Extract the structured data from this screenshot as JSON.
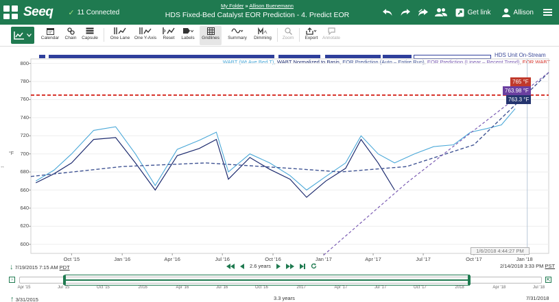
{
  "header": {
    "logo": "Seeq",
    "connected": "11 Connected",
    "breadcrumb_folder": "My Folder",
    "breadcrumb_separator": "»",
    "breadcrumb_user": "Allison Buenemann",
    "title": "HDS Fixed-Bed Catalyst EOR Prediction - 4. Predict EOR",
    "get_link": "Get link",
    "user": "Allison"
  },
  "toolbar": {
    "items": [
      {
        "label": "Calendar",
        "icon": "calendar-icon"
      },
      {
        "label": "Chain",
        "icon": "chain-icon"
      },
      {
        "label": "Capsule",
        "icon": "capsule-icon"
      },
      {
        "label": "One Lane",
        "icon": "one-lane-icon"
      },
      {
        "label": "One Y-Axis",
        "icon": "one-y-axis-icon"
      },
      {
        "label": "Reset",
        "icon": "reset-icon"
      },
      {
        "label": "Labels",
        "icon": "labels-icon"
      },
      {
        "label": "Gridlines",
        "icon": "gridlines-icon"
      },
      {
        "label": "Summary",
        "icon": "summary-icon"
      },
      {
        "label": "Dimming",
        "icon": "dimming-icon"
      },
      {
        "label": "Zoom",
        "icon": "zoom-icon"
      },
      {
        "label": "Export",
        "icon": "export-icon"
      },
      {
        "label": "Annotate",
        "icon": "annotate-icon"
      }
    ]
  },
  "chart_data": {
    "type": "line",
    "title": "",
    "ylabel": "°F",
    "ylim": [
      590,
      805
    ],
    "yticks": [
      "800",
      "780",
      "760",
      "740",
      "720",
      "700",
      "680",
      "660",
      "640",
      "620",
      "600"
    ],
    "xticks": [
      "Oct '15",
      "Jan '16",
      "Apr '16",
      "Jul '16",
      "Oct '16",
      "Jan '17",
      "Apr '17",
      "Jul '17",
      "Oct '17",
      "Jan '18"
    ],
    "xrange": [
      "2015-07-19",
      "2018-02-14"
    ],
    "legend_placement": "top-right",
    "condition": {
      "name": "HDS Unit On-Stream",
      "color": "#2e3f9b"
    },
    "series": [
      {
        "name": "WABT (Wt Ave Bed T)",
        "color": "#4aa8d8",
        "x": [
          "2015-07-28",
          "2015-08-30",
          "2015-10-01",
          "2015-11-10",
          "2015-12-20",
          "2016-01-25",
          "2016-03-01",
          "2016-04-10",
          "2016-05-20",
          "2016-06-20",
          "2016-07-12",
          "2016-08-20",
          "2016-09-25",
          "2016-11-01",
          "2016-12-01",
          "2017-01-05",
          "2017-02-10",
          "2017-03-10",
          "2017-04-10",
          "2017-05-10",
          "2017-06-15",
          "2017-07-20",
          "2017-08-25",
          "2017-09-25",
          "2017-10-25",
          "2017-11-20",
          "2017-12-15"
        ],
        "y": [
          670,
          682,
          700,
          726,
          730,
          700,
          665,
          705,
          715,
          724,
          680,
          700,
          690,
          676,
          660,
          675,
          690,
          720,
          700,
          690,
          700,
          708,
          710,
          724,
          728,
          732,
          750
        ]
      },
      {
        "name": "WABT Normalized to Basis",
        "color": "#1c2a6e",
        "x": [
          "2015-07-28",
          "2015-08-30",
          "2015-10-01",
          "2015-11-10",
          "2015-12-20",
          "2016-01-25",
          "2016-03-01",
          "2016-04-10",
          "2016-05-20",
          "2016-06-20",
          "2016-07-12",
          "2016-08-20",
          "2016-09-25",
          "2016-11-01",
          "2016-12-01",
          "2017-01-05",
          "2017-02-10",
          "2017-03-10",
          "2017-04-10",
          "2017-05-10"
        ],
        "y": [
          668,
          678,
          690,
          716,
          718,
          690,
          660,
          698,
          706,
          716,
          672,
          696,
          683,
          672,
          652,
          670,
          684,
          716,
          690,
          660
        ]
      },
      {
        "name": "EOR Prediction (Auto – Entire Run)",
        "color": "#3f5393",
        "x": [
          "2015-07-19",
          "2016-01-01",
          "2016-06-01",
          "2016-11-01",
          "2017-02-01",
          "2017-06-01",
          "2017-10-01",
          "2018-02-14"
        ],
        "y": [
          675,
          686,
          690,
          684,
          680,
          686,
          710,
          790
        ]
      },
      {
        "name": "EOR Prediction (Linear – Recent Trend)",
        "color": "#7b5cb3",
        "x": [
          "2017-01-01",
          "2017-06-01",
          "2017-10-01",
          "2018-02-14"
        ],
        "y": [
          588,
          668,
          726,
          790
        ]
      },
      {
        "name": "EOR WABT",
        "color": "#d62e25",
        "x": [
          "2015-07-19",
          "2018-02-14"
        ],
        "y": [
          765,
          765
        ]
      }
    ],
    "labels": [
      {
        "text": "765 °F",
        "color": "#c0392b"
      },
      {
        "text": "763.98 °F",
        "color": "#6a3fa0"
      },
      {
        "text": "763.3 °F",
        "color": "#24346e"
      }
    ],
    "cursor_timestamp": "1/6/2018 4:44:27 PM"
  },
  "nav": {
    "start": "7/19/2015 7:15 AM",
    "start_tz": "PDT",
    "duration": "2.6 years",
    "end": "2/14/2018 3:33 PM",
    "end_tz": "PST"
  },
  "overview": {
    "ticks": [
      "Apr '15",
      "Jul '15",
      "Oct '15",
      "2016",
      "Apr '16",
      "Jul '16",
      "Oct '16",
      "2017",
      "Apr '17",
      "Jul '17",
      "Oct '17",
      "2018",
      "Apr '18",
      "Jul '18"
    ],
    "start": "3/31/2015",
    "duration": "3.3 years",
    "end": "7/31/2018"
  }
}
